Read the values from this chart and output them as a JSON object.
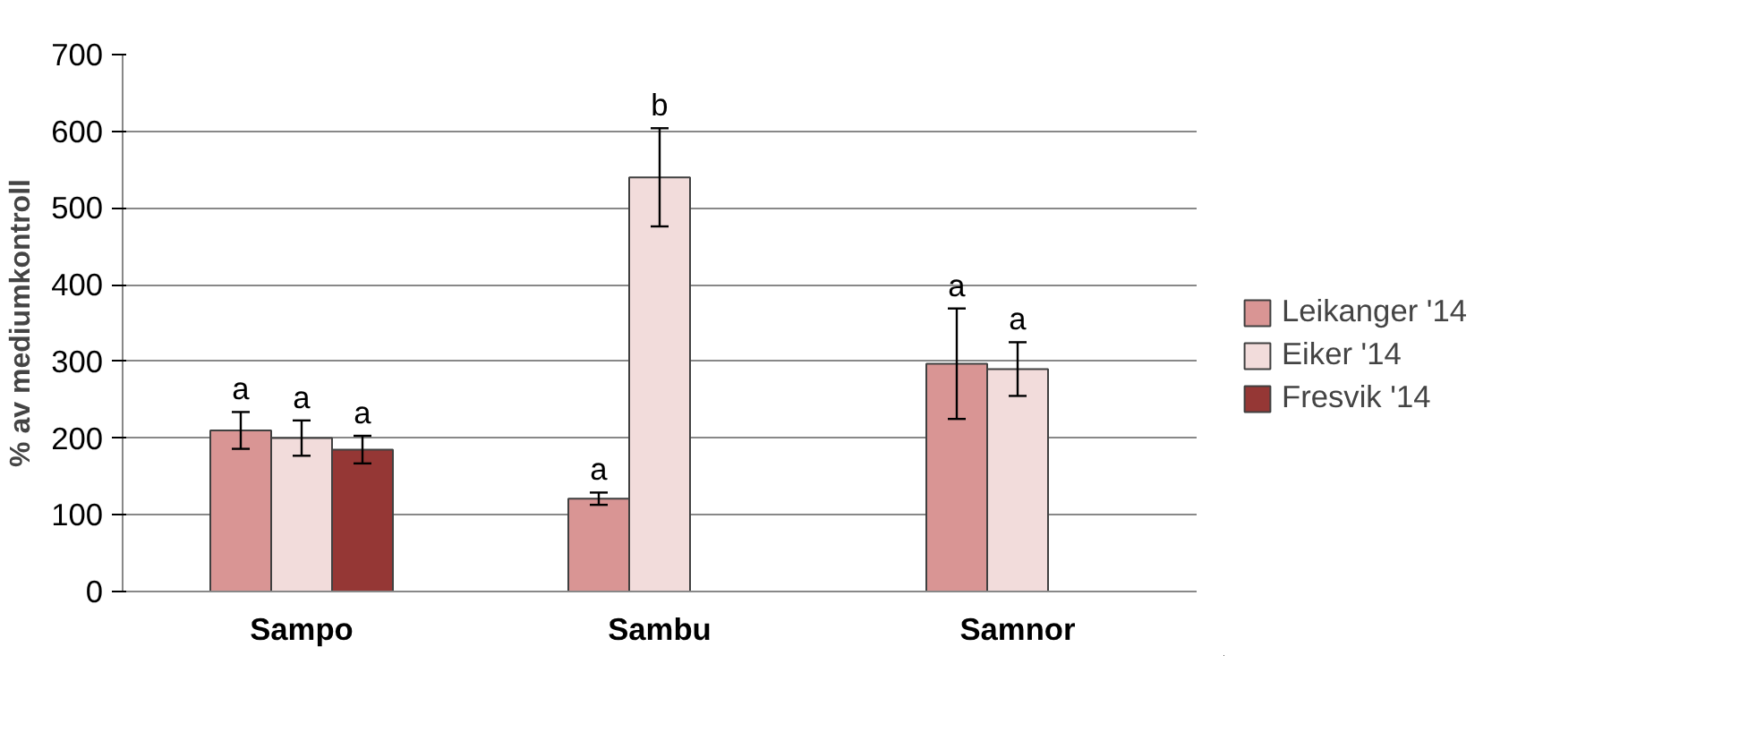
{
  "chart_data": {
    "type": "bar",
    "ylabel": "% av mediumkontroll",
    "categories": [
      "Sampo",
      "Sambu",
      "Samnor"
    ],
    "series": [
      {
        "name": "Leikanger '14",
        "color": "#d99594",
        "values": [
          210,
          121,
          297
        ],
        "errors": [
          24,
          8,
          72
        ]
      },
      {
        "name": "Eiker '14",
        "color": "#f2dcdb",
        "values": [
          200,
          540,
          290
        ],
        "errors": [
          23,
          64,
          35
        ]
      },
      {
        "name": "Fresvik '14",
        "color": "#953735",
        "values": [
          185,
          null,
          null
        ],
        "errors": [
          18,
          null,
          null
        ]
      }
    ],
    "ylim": [
      0,
      700
    ],
    "yticks": [
      0,
      100,
      200,
      300,
      400,
      500,
      600,
      700
    ],
    "grid": "y",
    "legend": "right",
    "annotations": [
      "a",
      "a",
      "a",
      "a",
      "b",
      "a",
      "a"
    ]
  }
}
